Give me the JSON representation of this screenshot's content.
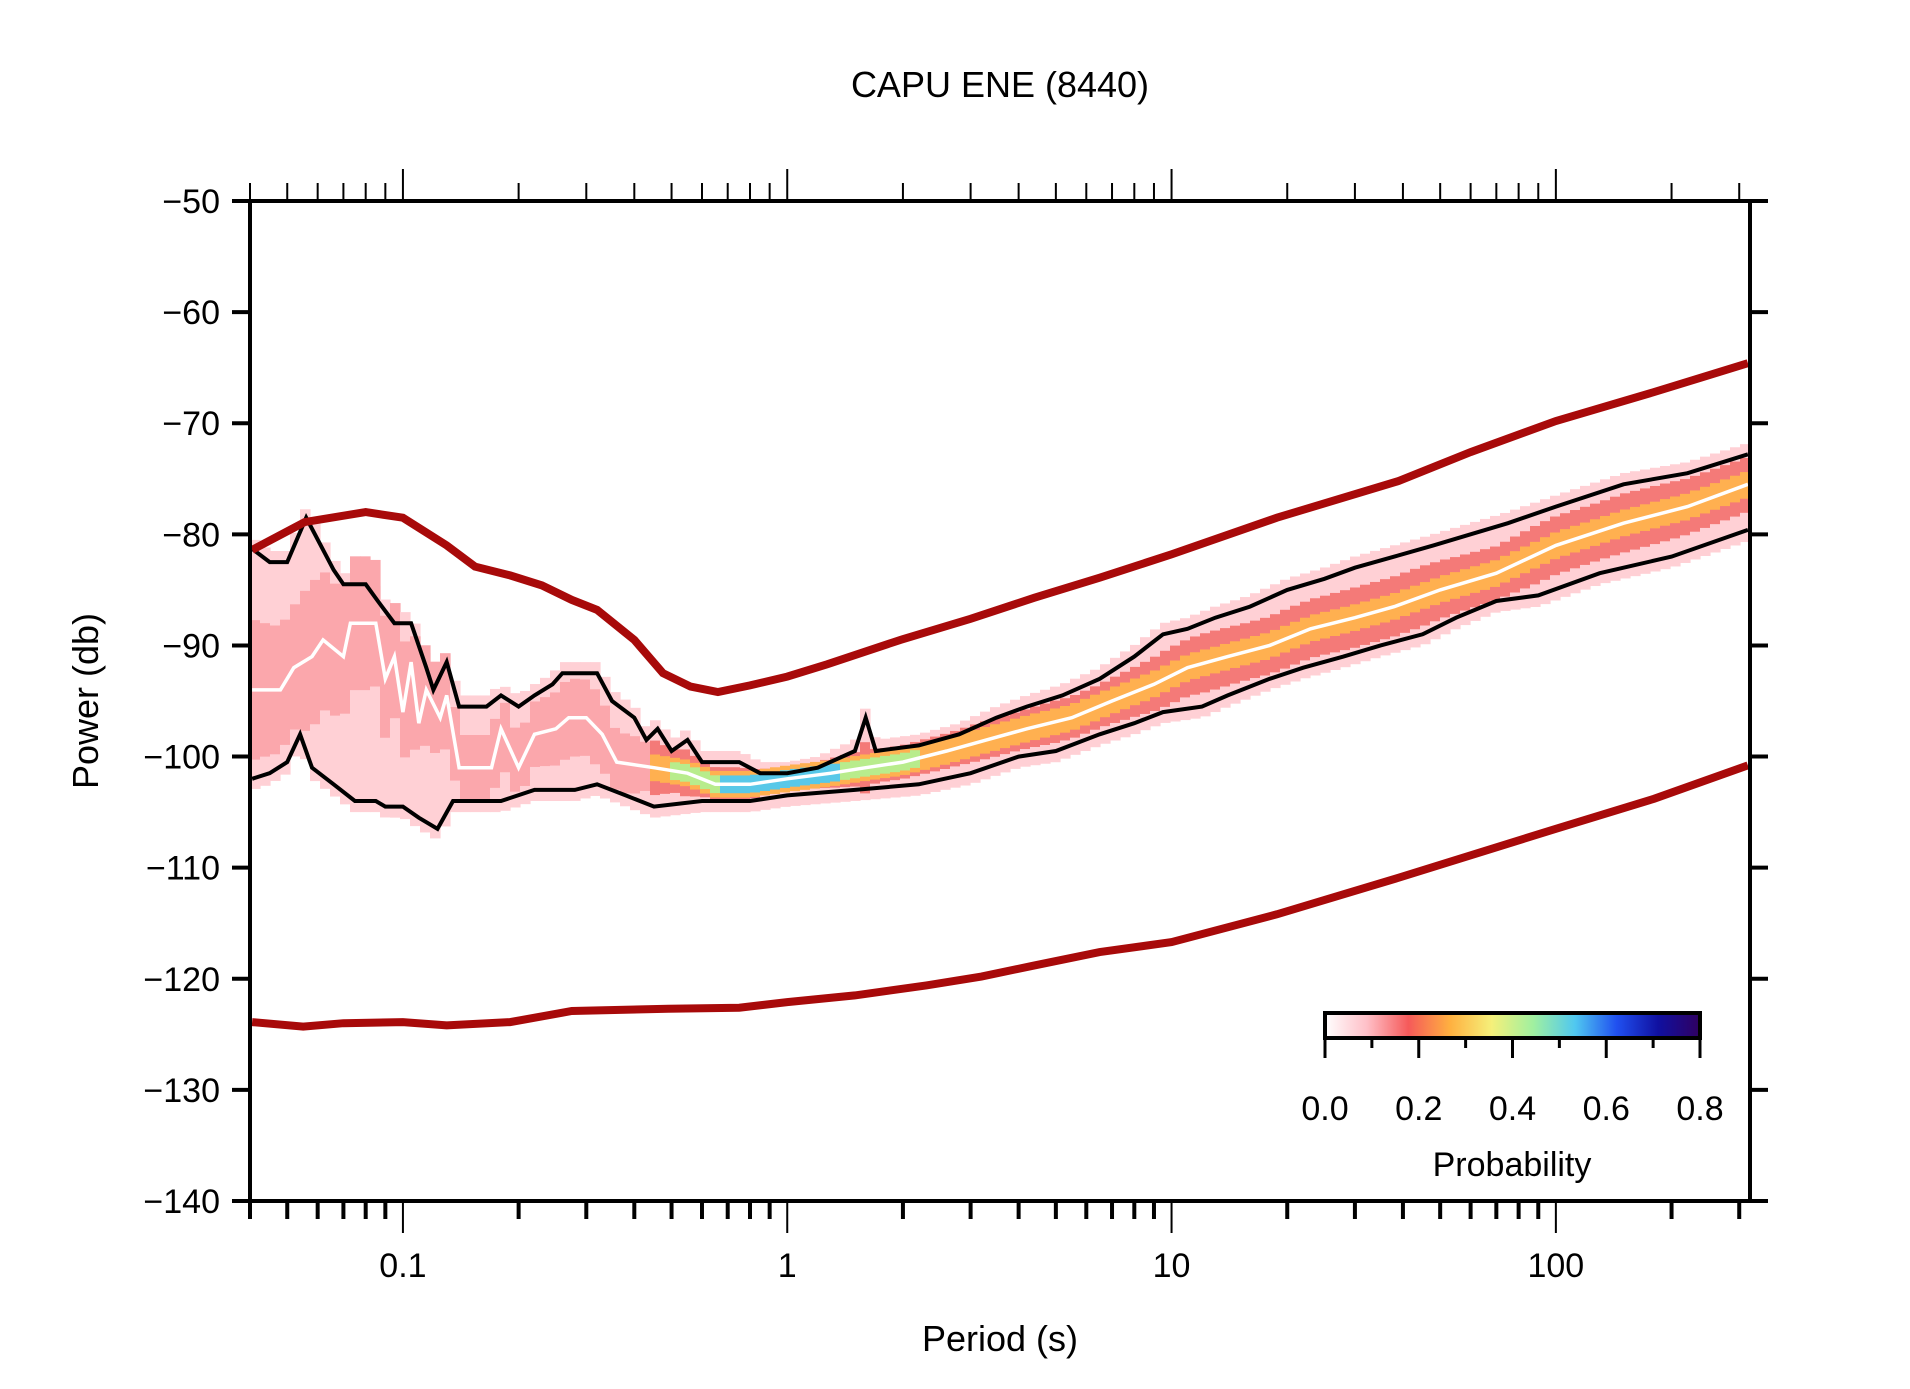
{
  "chart_data": {
    "type": "line",
    "title": "CAPU ENE (8440)",
    "xlabel": "Period (s)",
    "ylabel": "Power (db)",
    "xscale": "log",
    "xlim": [
      0.04,
      320
    ],
    "ylim": [
      -140,
      -50
    ],
    "grid": false,
    "x_ticks": [
      0.1,
      1,
      10,
      100
    ],
    "x_tick_labels": [
      "0.1",
      "1",
      "10",
      "100"
    ],
    "y_ticks": [
      -50,
      -60,
      -70,
      -80,
      -90,
      -100,
      -110,
      -120,
      -130,
      -140
    ],
    "y_tick_labels": [
      "−50",
      "−60",
      "−70",
      "−80",
      "−90",
      "−100",
      "−110",
      "−120",
      "−130",
      "−140"
    ],
    "series": [
      {
        "name": "High Noise Model",
        "color": "#a80a0a",
        "points": [
          [
            0.0405,
            -81.4
          ],
          [
            0.0555,
            -78.9
          ],
          [
            0.08,
            -78.0
          ],
          [
            0.1,
            -78.5
          ],
          [
            0.13,
            -81.0
          ],
          [
            0.154,
            -82.9
          ],
          [
            0.19,
            -83.7
          ],
          [
            0.23,
            -84.6
          ],
          [
            0.275,
            -85.9
          ],
          [
            0.32,
            -86.8
          ],
          [
            0.4,
            -89.5
          ],
          [
            0.475,
            -92.5
          ],
          [
            0.56,
            -93.7
          ],
          [
            0.66,
            -94.2
          ],
          [
            0.8,
            -93.6
          ],
          [
            1.0,
            -92.8
          ],
          [
            1.27,
            -91.7
          ],
          [
            1.97,
            -89.5
          ],
          [
            3.0,
            -87.6
          ],
          [
            4.4,
            -85.7
          ],
          [
            6.5,
            -83.9
          ],
          [
            10,
            -81.8
          ],
          [
            18.8,
            -78.5
          ],
          [
            39,
            -75.2
          ],
          [
            60,
            -72.6
          ],
          [
            100,
            -69.8
          ],
          [
            180,
            -67.2
          ],
          [
            316,
            -64.6
          ]
        ]
      },
      {
        "name": "Low Noise Model",
        "color": "#a80a0a",
        "points": [
          [
            0.0405,
            -123.9
          ],
          [
            0.055,
            -124.3
          ],
          [
            0.07,
            -124.0
          ],
          [
            0.1,
            -123.9
          ],
          [
            0.13,
            -124.2
          ],
          [
            0.19,
            -123.9
          ],
          [
            0.275,
            -122.9
          ],
          [
            0.49,
            -122.7
          ],
          [
            0.75,
            -122.6
          ],
          [
            1.0,
            -122.1
          ],
          [
            1.5,
            -121.5
          ],
          [
            2.3,
            -120.6
          ],
          [
            3.2,
            -119.8
          ],
          [
            4.4,
            -118.8
          ],
          [
            6.5,
            -117.6
          ],
          [
            10,
            -116.7
          ],
          [
            18.8,
            -114.2
          ],
          [
            39,
            -110.9
          ],
          [
            100,
            -106.5
          ],
          [
            180,
            -103.8
          ],
          [
            316,
            -100.8
          ]
        ]
      },
      {
        "name": "90th percentile",
        "color": "#000000",
        "points": [
          [
            0.0405,
            -81.3
          ],
          [
            0.045,
            -82.5
          ],
          [
            0.05,
            -82.5
          ],
          [
            0.056,
            -78.5
          ],
          [
            0.066,
            -83.2
          ],
          [
            0.07,
            -84.5
          ],
          [
            0.08,
            -84.5
          ],
          [
            0.086,
            -86.0
          ],
          [
            0.095,
            -88.0
          ],
          [
            0.105,
            -88.0
          ],
          [
            0.115,
            -92.0
          ],
          [
            0.12,
            -94.0
          ],
          [
            0.13,
            -91.5
          ],
          [
            0.14,
            -95.5
          ],
          [
            0.165,
            -95.5
          ],
          [
            0.18,
            -94.5
          ],
          [
            0.2,
            -95.5
          ],
          [
            0.22,
            -94.5
          ],
          [
            0.245,
            -93.5
          ],
          [
            0.26,
            -92.5
          ],
          [
            0.32,
            -92.5
          ],
          [
            0.35,
            -95.0
          ],
          [
            0.4,
            -96.5
          ],
          [
            0.43,
            -98.5
          ],
          [
            0.46,
            -97.5
          ],
          [
            0.5,
            -99.5
          ],
          [
            0.55,
            -98.5
          ],
          [
            0.6,
            -100.5
          ],
          [
            0.75,
            -100.5
          ],
          [
            0.85,
            -101.5
          ],
          [
            1.0,
            -101.5
          ],
          [
            1.2,
            -101.0
          ],
          [
            1.5,
            -99.5
          ],
          [
            1.6,
            -96.5
          ],
          [
            1.7,
            -99.5
          ],
          [
            2.2,
            -99.0
          ],
          [
            2.8,
            -98.0
          ],
          [
            3.5,
            -96.5
          ],
          [
            4.2,
            -95.5
          ],
          [
            5.2,
            -94.5
          ],
          [
            6.5,
            -93.0
          ],
          [
            8,
            -91.0
          ],
          [
            9.5,
            -89.0
          ],
          [
            11,
            -88.5
          ],
          [
            13,
            -87.5
          ],
          [
            16,
            -86.5
          ],
          [
            20,
            -85.0
          ],
          [
            25,
            -84.0
          ],
          [
            30,
            -83.0
          ],
          [
            38,
            -82.0
          ],
          [
            48,
            -81.0
          ],
          [
            60,
            -80.0
          ],
          [
            75,
            -79.0
          ],
          [
            100,
            -77.5
          ],
          [
            150,
            -75.5
          ],
          [
            220,
            -74.5
          ],
          [
            316,
            -72.8
          ]
        ]
      },
      {
        "name": "10th percentile",
        "color": "#000000",
        "points": [
          [
            0.0405,
            -102.0
          ],
          [
            0.045,
            -101.5
          ],
          [
            0.05,
            -100.5
          ],
          [
            0.054,
            -98.0
          ],
          [
            0.058,
            -101.0
          ],
          [
            0.066,
            -102.5
          ],
          [
            0.075,
            -104.0
          ],
          [
            0.085,
            -104.0
          ],
          [
            0.09,
            -104.5
          ],
          [
            0.1,
            -104.5
          ],
          [
            0.11,
            -105.5
          ],
          [
            0.123,
            -106.5
          ],
          [
            0.135,
            -104.0
          ],
          [
            0.18,
            -104.0
          ],
          [
            0.22,
            -103.0
          ],
          [
            0.28,
            -103.0
          ],
          [
            0.32,
            -102.5
          ],
          [
            0.38,
            -103.5
          ],
          [
            0.45,
            -104.5
          ],
          [
            0.6,
            -104.0
          ],
          [
            0.8,
            -104.0
          ],
          [
            1.0,
            -103.5
          ],
          [
            1.5,
            -103.0
          ],
          [
            2.2,
            -102.5
          ],
          [
            3.0,
            -101.5
          ],
          [
            4.0,
            -100.0
          ],
          [
            5.0,
            -99.5
          ],
          [
            6.5,
            -98.0
          ],
          [
            8.0,
            -97.0
          ],
          [
            9.5,
            -96.0
          ],
          [
            12,
            -95.5
          ],
          [
            14,
            -94.5
          ],
          [
            18,
            -93.0
          ],
          [
            22,
            -92.0
          ],
          [
            28,
            -91.0
          ],
          [
            35,
            -90.0
          ],
          [
            45,
            -89.0
          ],
          [
            55,
            -87.5
          ],
          [
            70,
            -86.0
          ],
          [
            90,
            -85.5
          ],
          [
            130,
            -83.5
          ],
          [
            200,
            -82.0
          ],
          [
            316,
            -79.6
          ]
        ]
      },
      {
        "name": "Mode",
        "color": "#ffffff",
        "points": [
          [
            0.0405,
            -94.0
          ],
          [
            0.048,
            -94.0
          ],
          [
            0.052,
            -92.0
          ],
          [
            0.058,
            -91.0
          ],
          [
            0.062,
            -89.5
          ],
          [
            0.07,
            -91.0
          ],
          [
            0.073,
            -88.0
          ],
          [
            0.085,
            -88.0
          ],
          [
            0.09,
            -93.0
          ],
          [
            0.095,
            -91.0
          ],
          [
            0.1,
            -96.0
          ],
          [
            0.105,
            -91.5
          ],
          [
            0.11,
            -97.0
          ],
          [
            0.115,
            -94.0
          ],
          [
            0.125,
            -96.5
          ],
          [
            0.13,
            -94.5
          ],
          [
            0.14,
            -101.0
          ],
          [
            0.17,
            -101.0
          ],
          [
            0.18,
            -97.5
          ],
          [
            0.2,
            -101.0
          ],
          [
            0.22,
            -98.0
          ],
          [
            0.25,
            -97.5
          ],
          [
            0.27,
            -96.5
          ],
          [
            0.3,
            -96.5
          ],
          [
            0.33,
            -98.0
          ],
          [
            0.36,
            -100.5
          ],
          [
            0.45,
            -101.0
          ],
          [
            0.55,
            -101.5
          ],
          [
            0.65,
            -102.5
          ],
          [
            0.8,
            -102.5
          ],
          [
            1.0,
            -102.0
          ],
          [
            1.3,
            -101.5
          ],
          [
            1.6,
            -101.0
          ],
          [
            2.0,
            -100.5
          ],
          [
            2.6,
            -99.5
          ],
          [
            3.3,
            -98.5
          ],
          [
            4.2,
            -97.5
          ],
          [
            5.5,
            -96.5
          ],
          [
            7,
            -95.0
          ],
          [
            9,
            -93.5
          ],
          [
            11,
            -92.0
          ],
          [
            14,
            -91.0
          ],
          [
            18,
            -90.0
          ],
          [
            23,
            -88.5
          ],
          [
            30,
            -87.5
          ],
          [
            38,
            -86.5
          ],
          [
            50,
            -85.0
          ],
          [
            70,
            -83.5
          ],
          [
            100,
            -81.0
          ],
          [
            150,
            -79.0
          ],
          [
            220,
            -77.5
          ],
          [
            316,
            -75.5
          ]
        ]
      }
    ],
    "pdf_band": {
      "description": "probability density shading",
      "peak_probability_region": {
        "period_range": [
          0.6,
          1.5
        ],
        "power": -102,
        "approx_probability": 0.45
      }
    },
    "colorbar": {
      "label": "Probability",
      "ticks": [
        0.0,
        0.2,
        0.4,
        0.6,
        0.8
      ],
      "tick_labels": [
        "0.0",
        "0.2",
        "0.4",
        "0.6",
        "0.8"
      ],
      "range": [
        0.0,
        0.8
      ],
      "colors": [
        "#ffffff",
        "#ffc0c8",
        "#f55a5a",
        "#ffb040",
        "#f5f07a",
        "#a0f0a0",
        "#50c8f0",
        "#2050f0",
        "#1010a0",
        "#300060"
      ]
    }
  }
}
